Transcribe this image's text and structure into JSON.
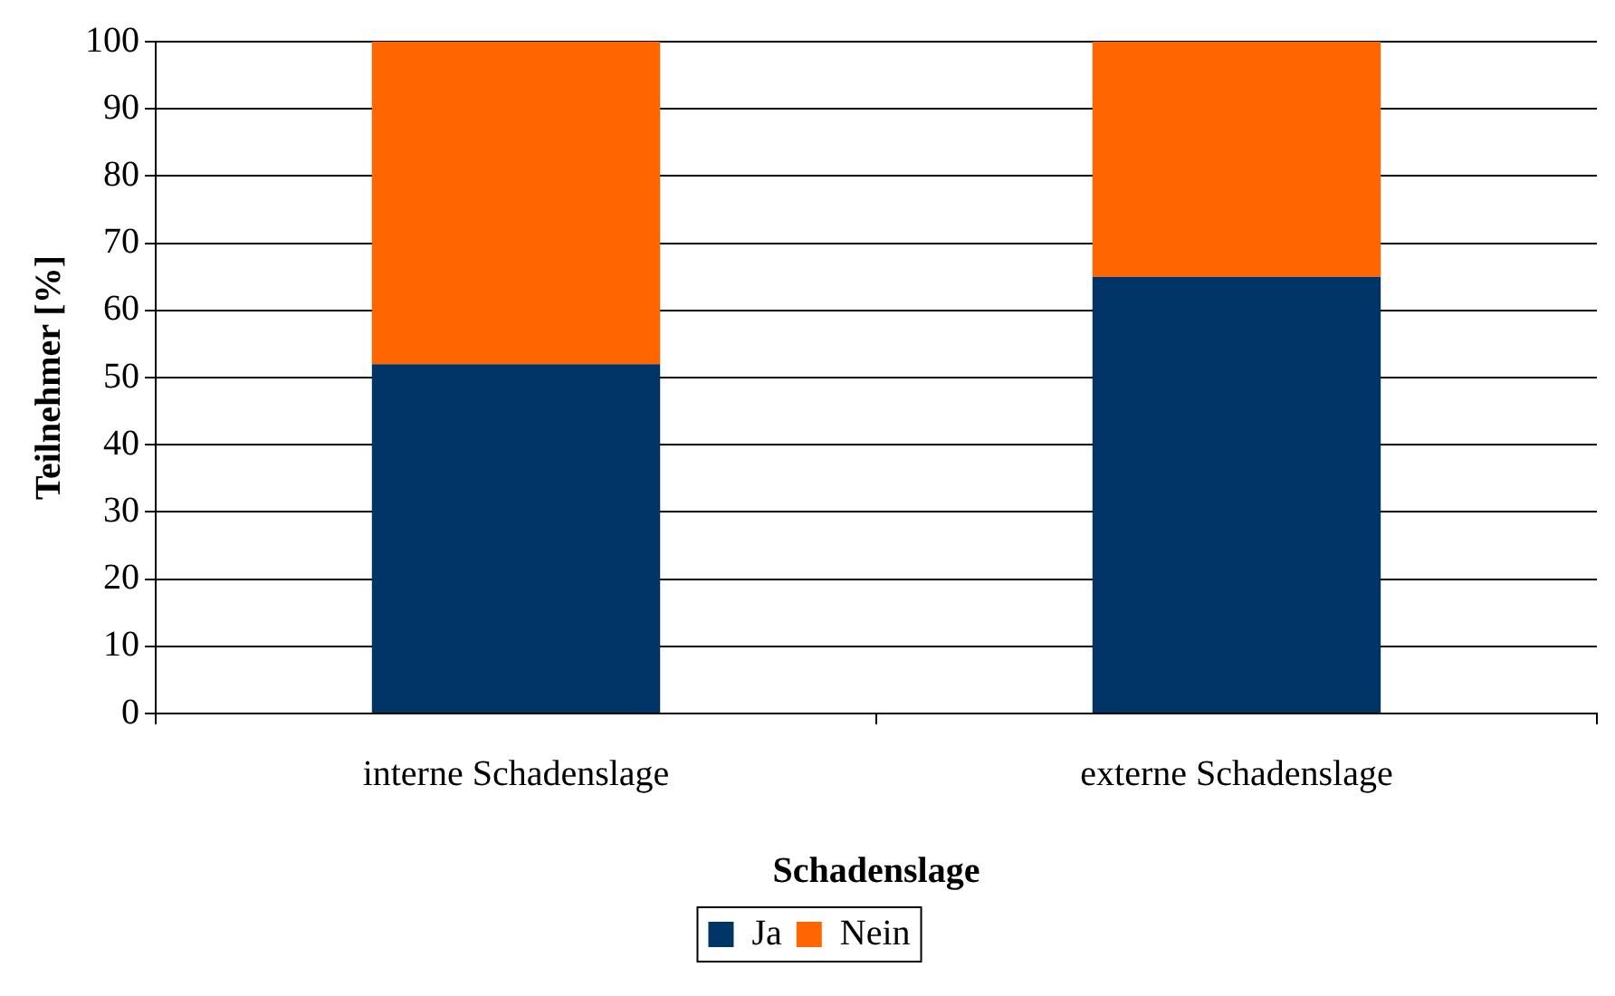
{
  "chart_data": {
    "type": "bar",
    "stacked": true,
    "xlabel": "Schadenslage",
    "ylabel": "Teilnehmer [%]",
    "categories": [
      "interne Schadenslage",
      "externe Schadenslage"
    ],
    "series": [
      {
        "name": "Ja",
        "color": "#003366",
        "values": [
          52,
          65
        ]
      },
      {
        "name": "Nein",
        "color": "#ff6600",
        "values": [
          48,
          35
        ]
      }
    ],
    "ylim": [
      0,
      100
    ],
    "yticks": [
      0,
      10,
      20,
      30,
      40,
      50,
      60,
      70,
      80,
      90,
      100
    ],
    "grid": "y",
    "legend": "bottom"
  }
}
